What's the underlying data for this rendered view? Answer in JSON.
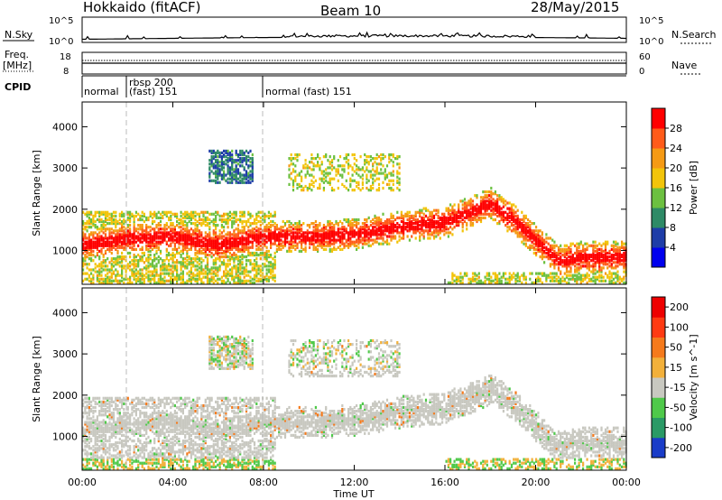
{
  "header": {
    "station": "Hokkaido (fitACF)",
    "beam": "Beam 10",
    "date": "28/May/2015"
  },
  "strip_panels": {
    "nsky": {
      "left_label": "N.Sky",
      "left_ticks": [
        "10^5",
        "10^0"
      ],
      "right_label": "N.Search",
      "right_ticks": [
        "10^5",
        "10^0"
      ]
    },
    "freq": {
      "left_label_1": "Freq.",
      "left_label_2": "[MHz]",
      "left_ticks": [
        "18",
        "8"
      ],
      "right_label": "Nave",
      "right_ticks": [
        "60",
        "0"
      ]
    },
    "cpid": {
      "label": "CPID",
      "segments": [
        {
          "start_hour": 0.0,
          "text": "normal"
        },
        {
          "start_hour": 2.0,
          "text": "rbsp 200"
        },
        {
          "start_hour": 2.0,
          "text": "(fast) 151"
        },
        {
          "start_hour": 8.0,
          "text": "normal (fast)  151"
        }
      ]
    }
  },
  "chart_data": [
    {
      "type": "heatmap",
      "name": "power",
      "xlabel": "Time UT",
      "ylabel": "Slant Range [km]",
      "xlim": [
        0,
        24
      ],
      "ylim": [
        180,
        4600
      ],
      "x_ticks": [
        "00:00",
        "04:00",
        "08:00",
        "12:00",
        "16:00",
        "20:00",
        "00:00"
      ],
      "y_ticks": [
        1000,
        2000,
        3000,
        4000
      ],
      "colorbar": {
        "label": "Power [dB]",
        "ticks": [
          4,
          8,
          12,
          16,
          20,
          24,
          28
        ],
        "range": [
          0,
          32
        ],
        "colors": [
          "#0000ee",
          "#1e3da8",
          "#2e8a66",
          "#6cc040",
          "#f2c40a",
          "#f59a14",
          "#ff5b1a",
          "#ff0000"
        ]
      },
      "features": [
        {
          "name": "main echo band center",
          "time": [
            0,
            2,
            4,
            6,
            8,
            10,
            12,
            14,
            16,
            18,
            19,
            20,
            21,
            22,
            24
          ],
          "range_km": [
            1100,
            1250,
            1300,
            1100,
            1300,
            1300,
            1350,
            1550,
            1650,
            2100,
            1700,
            1200,
            700,
            800,
            800
          ]
        },
        {
          "name": "high range cluster",
          "time_range": [
            5.5,
            7.5
          ],
          "range_km": [
            2700,
            3400
          ]
        }
      ]
    },
    {
      "type": "heatmap",
      "name": "velocity",
      "xlabel": "Time UT",
      "ylabel": "Slant Range [km]",
      "xlim": [
        0,
        24
      ],
      "ylim": [
        180,
        4600
      ],
      "x_ticks": [
        "00:00",
        "04:00",
        "08:00",
        "12:00",
        "16:00",
        "20:00",
        "00:00"
      ],
      "y_ticks": [
        1000,
        2000,
        3000,
        4000
      ],
      "colorbar": {
        "label": "Velocity [m s^-1]",
        "ticks": [
          200,
          100,
          50,
          15,
          -15,
          -50,
          -100,
          -200
        ],
        "colors": [
          "#1a3cc8",
          "#2a9a66",
          "#4fc94a",
          "#c8c8c0",
          "#f2b03a",
          "#f57a1c",
          "#ff3a12",
          "#ee0000"
        ]
      },
      "features": [
        {
          "name": "ground scatter band (low velocity)",
          "time": [
            0,
            4,
            8,
            12,
            16,
            18,
            20,
            24
          ],
          "range_km": [
            1200,
            1400,
            1400,
            1500,
            1700,
            2000,
            1100,
            800
          ]
        }
      ]
    }
  ]
}
